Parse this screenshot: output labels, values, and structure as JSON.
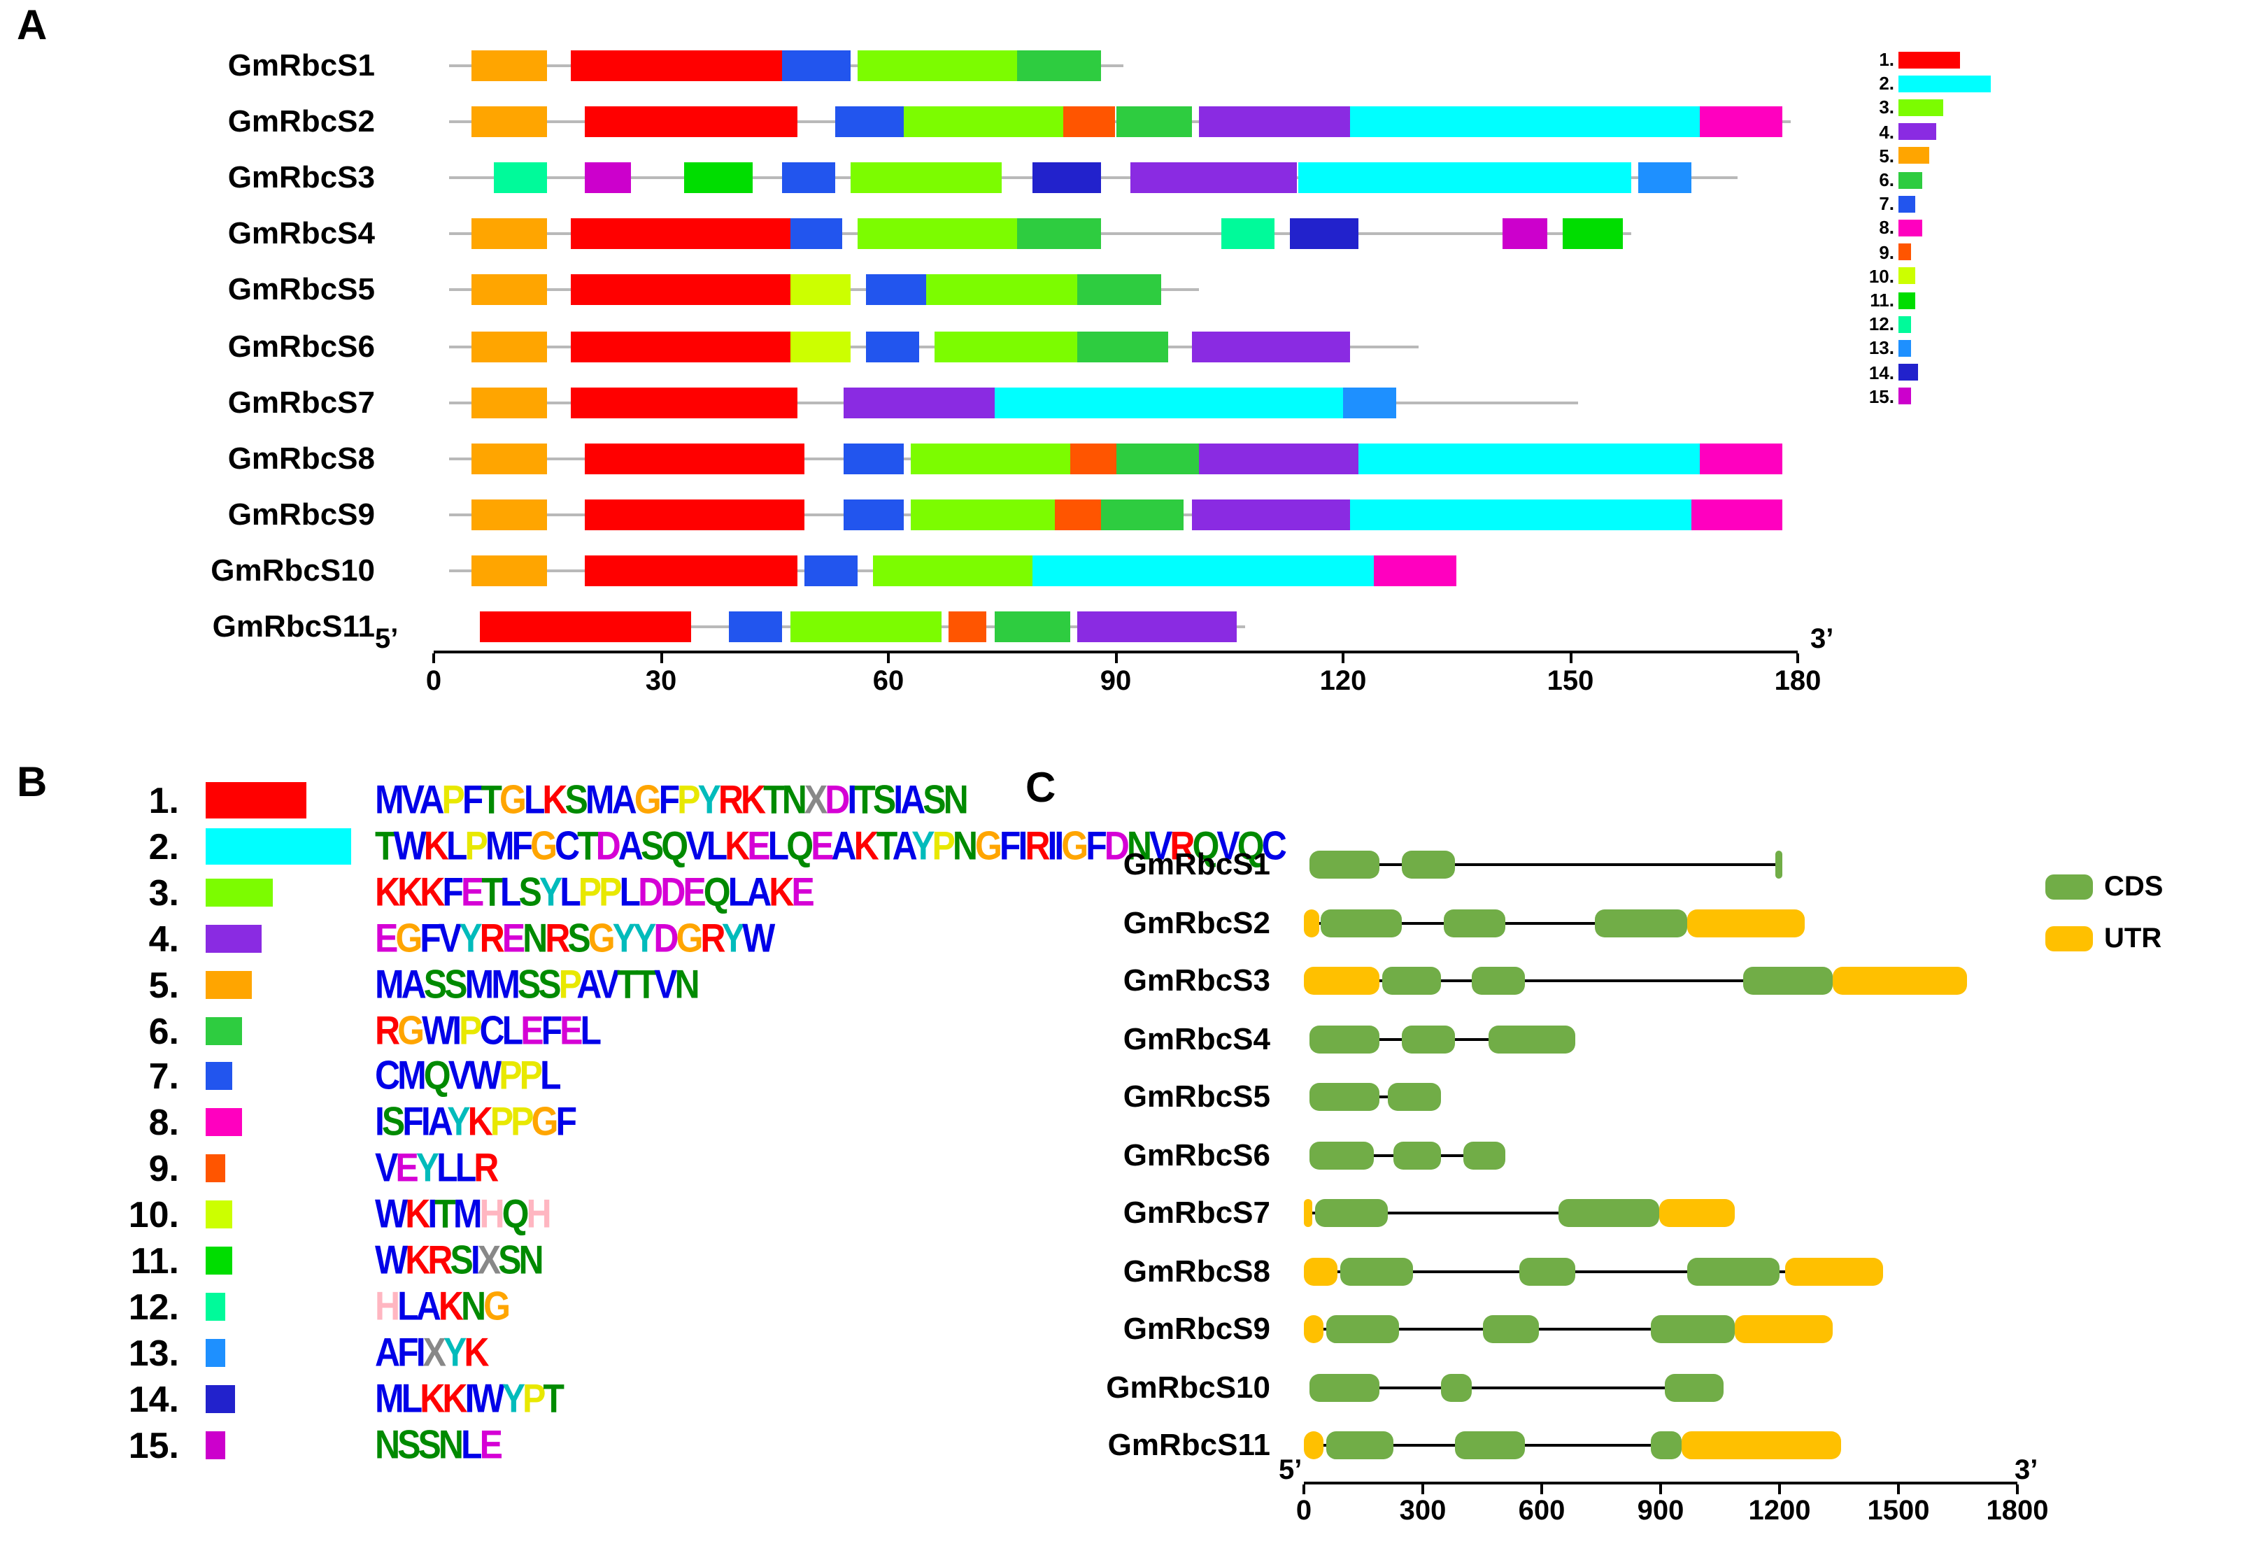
{
  "figure": {
    "panel_a_label": "A",
    "panel_b_label": "B",
    "panel_c_label": "C"
  },
  "motif_colors": {
    "1": "#FF0000",
    "2": "#00FFFF",
    "3": "#7CFC00",
    "4": "#8A2BE2",
    "5": "#FFA500",
    "6": "#2ECC40",
    "7": "#2255EE",
    "8": "#FF00BF",
    "9": "#FF5500",
    "10": "#CCFF00",
    "11": "#00DD00",
    "12": "#00FA9A",
    "13": "#1E90FF",
    "14": "#2222CC",
    "15": "#CC00CC"
  },
  "aa_colors": {
    "A": "#0000E8",
    "C": "#0000E8",
    "F": "#0000E8",
    "I": "#0000E8",
    "L": "#0000E8",
    "V": "#0000E8",
    "W": "#0000E8",
    "M": "#0000E8",
    "N": "#008A00",
    "Q": "#008A00",
    "S": "#008A00",
    "T": "#008A00",
    "D": "#D500D5",
    "E": "#D500D5",
    "K": "#FF0000",
    "R": "#FF0000",
    "H": "#FFB6C1",
    "G": "#FFA500",
    "P": "#E8E800",
    "Y": "#00BBBB",
    "X": "#888888"
  },
  "panel_a": {
    "axis": {
      "min": 0,
      "max": 180,
      "ticks": [
        "0",
        "30",
        "60",
        "90",
        "120",
        "150",
        "180"
      ],
      "five_prime": "5’",
      "three_prime": "3’"
    },
    "legend": [
      {
        "num": "1.",
        "motif": 1,
        "w": 44
      },
      {
        "num": "2.",
        "motif": 2,
        "w": 66
      },
      {
        "num": "3.",
        "motif": 3,
        "w": 32
      },
      {
        "num": "4.",
        "motif": 4,
        "w": 27
      },
      {
        "num": "5.",
        "motif": 5,
        "w": 22
      },
      {
        "num": "6.",
        "motif": 6,
        "w": 17
      },
      {
        "num": "7.",
        "motif": 7,
        "w": 12
      },
      {
        "num": "8.",
        "motif": 8,
        "w": 17
      },
      {
        "num": "9.",
        "motif": 9,
        "w": 9
      },
      {
        "num": "10.",
        "motif": 10,
        "w": 12
      },
      {
        "num": "11.",
        "motif": 11,
        "w": 12
      },
      {
        "num": "12.",
        "motif": 12,
        "w": 9
      },
      {
        "num": "13.",
        "motif": 13,
        "w": 9
      },
      {
        "num": "14.",
        "motif": 14,
        "w": 14
      },
      {
        "num": "15.",
        "motif": 15,
        "w": 9
      }
    ],
    "genes": [
      {
        "name": "GmRbcS1",
        "span": [
          2,
          91
        ],
        "motifs": [
          [
            5,
            5,
            15
          ],
          [
            1,
            18,
            46
          ],
          [
            7,
            46,
            55
          ],
          [
            3,
            56,
            77
          ],
          [
            6,
            77,
            88
          ]
        ]
      },
      {
        "name": "GmRbcS2",
        "span": [
          2,
          179
        ],
        "motifs": [
          [
            5,
            5,
            15
          ],
          [
            1,
            20,
            48
          ],
          [
            7,
            53,
            62
          ],
          [
            3,
            62,
            83
          ],
          [
            9,
            83,
            90
          ],
          [
            6,
            90,
            100
          ],
          [
            4,
            101,
            121
          ],
          [
            2,
            121,
            167
          ],
          [
            8,
            167,
            178
          ]
        ]
      },
      {
        "name": "GmRbcS3",
        "span": [
          2,
          172
        ],
        "motifs": [
          [
            12,
            8,
            15
          ],
          [
            15,
            20,
            26
          ],
          [
            11,
            33,
            42
          ],
          [
            7,
            46,
            53
          ],
          [
            3,
            55,
            75
          ],
          [
            14,
            79,
            88
          ],
          [
            4,
            92,
            114
          ],
          [
            2,
            114,
            158
          ],
          [
            13,
            159,
            166
          ]
        ]
      },
      {
        "name": "GmRbcS4",
        "span": [
          2,
          158
        ],
        "motifs": [
          [
            5,
            5,
            15
          ],
          [
            1,
            18,
            47
          ],
          [
            7,
            47,
            54
          ],
          [
            3,
            56,
            77
          ],
          [
            6,
            77,
            88
          ],
          [
            12,
            104,
            111
          ],
          [
            14,
            113,
            122
          ],
          [
            15,
            141,
            147
          ],
          [
            11,
            149,
            157
          ]
        ]
      },
      {
        "name": "GmRbcS5",
        "span": [
          2,
          101
        ],
        "motifs": [
          [
            5,
            5,
            15
          ],
          [
            1,
            18,
            47
          ],
          [
            10,
            47,
            55
          ],
          [
            7,
            57,
            65
          ],
          [
            3,
            65,
            85
          ],
          [
            6,
            85,
            96
          ]
        ]
      },
      {
        "name": "GmRbcS6",
        "span": [
          2,
          130
        ],
        "motifs": [
          [
            5,
            5,
            15
          ],
          [
            1,
            18,
            47
          ],
          [
            10,
            47,
            55
          ],
          [
            7,
            57,
            64
          ],
          [
            3,
            66,
            85
          ],
          [
            6,
            85,
            97
          ],
          [
            4,
            100,
            121
          ]
        ]
      },
      {
        "name": "GmRbcS7",
        "span": [
          2,
          151
        ],
        "motifs": [
          [
            5,
            5,
            15
          ],
          [
            1,
            18,
            48
          ],
          [
            4,
            54,
            74
          ],
          [
            2,
            74,
            120
          ],
          [
            13,
            120,
            127
          ]
        ]
      },
      {
        "name": "GmRbcS8",
        "span": [
          2,
          178
        ],
        "motifs": [
          [
            5,
            5,
            15
          ],
          [
            1,
            20,
            49
          ],
          [
            7,
            54,
            62
          ],
          [
            3,
            63,
            84
          ],
          [
            9,
            84,
            90
          ],
          [
            6,
            90,
            101
          ],
          [
            4,
            101,
            122
          ],
          [
            2,
            122,
            167
          ],
          [
            8,
            167,
            178
          ]
        ]
      },
      {
        "name": "GmRbcS9",
        "span": [
          2,
          178
        ],
        "motifs": [
          [
            5,
            5,
            15
          ],
          [
            1,
            20,
            49
          ],
          [
            7,
            54,
            62
          ],
          [
            3,
            63,
            82
          ],
          [
            9,
            82,
            88
          ],
          [
            6,
            88,
            99
          ],
          [
            4,
            100,
            121
          ],
          [
            2,
            121,
            166
          ],
          [
            8,
            166,
            178
          ]
        ]
      },
      {
        "name": "GmRbcS10",
        "span": [
          2,
          135
        ],
        "motifs": [
          [
            5,
            5,
            15
          ],
          [
            1,
            20,
            48
          ],
          [
            7,
            49,
            56
          ],
          [
            3,
            58,
            79
          ],
          [
            2,
            79,
            124
          ],
          [
            8,
            124,
            135
          ]
        ]
      },
      {
        "name": "GmRbcS11",
        "span": [
          6,
          107
        ],
        "motifs": [
          [
            1,
            6,
            34
          ],
          [
            7,
            39,
            46
          ],
          [
            3,
            47,
            67
          ],
          [
            9,
            68,
            73
          ],
          [
            6,
            74,
            84
          ],
          [
            4,
            85,
            106
          ]
        ]
      }
    ]
  },
  "panel_b": {
    "items": [
      {
        "num": "1.",
        "motif": 1,
        "w": 72,
        "h": 26,
        "logo": "MVAPFTGLKSMAGFPYRKTNXDITSIASN"
      },
      {
        "num": "2.",
        "motif": 2,
        "w": 104,
        "h": 26,
        "logo": "TWKLPMFGCTDASQVLKELQEAKTAYPNGFIRIIGFDNVRQVQC"
      },
      {
        "num": "3.",
        "motif": 3,
        "w": 48,
        "h": 20,
        "logo": "KKKFETLSYLPPLDDEQLAKE"
      },
      {
        "num": "4.",
        "motif": 4,
        "w": 40,
        "h": 20,
        "logo": "EGFVYRENRSGYYDGRYW"
      },
      {
        "num": "5.",
        "motif": 5,
        "w": 33,
        "h": 20,
        "logo": "MASSMMSSPAVTTVN"
      },
      {
        "num": "6.",
        "motif": 6,
        "w": 26,
        "h": 20,
        "logo": "RGWIPCLEFEL"
      },
      {
        "num": "7.",
        "motif": 7,
        "w": 19,
        "h": 20,
        "logo": "CMQVWPPL"
      },
      {
        "num": "8.",
        "motif": 8,
        "w": 26,
        "h": 20,
        "logo": "ISFIAYKPPGF"
      },
      {
        "num": "9.",
        "motif": 9,
        "w": 14,
        "h": 20,
        "logo": "VEYLLR"
      },
      {
        "num": "10.",
        "motif": 10,
        "w": 19,
        "h": 20,
        "logo": "WKITMHQH"
      },
      {
        "num": "11.",
        "motif": 11,
        "w": 19,
        "h": 20,
        "logo": "WKRSIXSN"
      },
      {
        "num": "12.",
        "motif": 12,
        "w": 14,
        "h": 20,
        "logo": "HLAKNG"
      },
      {
        "num": "13.",
        "motif": 13,
        "w": 14,
        "h": 20,
        "logo": "AFIXYK"
      },
      {
        "num": "14.",
        "motif": 14,
        "w": 21,
        "h": 20,
        "logo": "MLKKIWYPT"
      },
      {
        "num": "15.",
        "motif": 15,
        "w": 14,
        "h": 20,
        "logo": "NSSNLE"
      }
    ]
  },
  "panel_c": {
    "colors": {
      "cds": "#71AD47",
      "utr": "#FFC000"
    },
    "legend": [
      {
        "key": "cds",
        "label": "CDS"
      },
      {
        "key": "utr",
        "label": "UTR"
      }
    ],
    "axis": {
      "min": 0,
      "max": 1800,
      "ticks": [
        "0",
        "300",
        "600",
        "900",
        "1200",
        "1500",
        "1800"
      ],
      "five_prime": "5’",
      "three_prime": "3’"
    },
    "genes": [
      {
        "name": "GmRbcS1",
        "span": [
          15,
          1207
        ],
        "features": [
          [
            "CDS",
            15,
            190
          ],
          [
            "CDS",
            247,
            381
          ],
          [
            "CDS",
            1190,
            1207
          ]
        ]
      },
      {
        "name": "GmRbcS2",
        "span": [
          0,
          1264
        ],
        "features": [
          [
            "UTR",
            0,
            40
          ],
          [
            "CDS",
            42,
            247
          ],
          [
            "CDS",
            353,
            508
          ],
          [
            "CDS",
            734,
            967
          ],
          [
            "UTR",
            967,
            1264
          ]
        ]
      },
      {
        "name": "GmRbcS3",
        "span": [
          0,
          1673
        ],
        "features": [
          [
            "UTR",
            0,
            190
          ],
          [
            "CDS",
            198,
            346
          ],
          [
            "CDS",
            424,
            558
          ],
          [
            "CDS",
            1108,
            1334
          ],
          [
            "UTR",
            1334,
            1673
          ]
        ]
      },
      {
        "name": "GmRbcS4",
        "span": [
          15,
          685
        ],
        "features": [
          [
            "CDS",
            15,
            190
          ],
          [
            "CDS",
            247,
            381
          ],
          [
            "CDS",
            466,
            685
          ]
        ]
      },
      {
        "name": "GmRbcS5",
        "span": [
          15,
          346
        ],
        "features": [
          [
            "CDS",
            15,
            190
          ],
          [
            "CDS",
            212,
            346
          ]
        ]
      },
      {
        "name": "GmRbcS6",
        "span": [
          15,
          508
        ],
        "features": [
          [
            "CDS",
            15,
            176
          ],
          [
            "CDS",
            226,
            346
          ],
          [
            "CDS",
            402,
            508
          ]
        ]
      },
      {
        "name": "GmRbcS7",
        "span": [
          0,
          1087
        ],
        "features": [
          [
            "UTR",
            0,
            21
          ],
          [
            "CDS",
            28,
            212
          ],
          [
            "CDS",
            642,
            897
          ],
          [
            "UTR",
            897,
            1087
          ]
        ]
      },
      {
        "name": "GmRbcS8",
        "span": [
          0,
          1460
        ],
        "features": [
          [
            "UTR",
            0,
            85
          ],
          [
            "CDS",
            92,
            275
          ],
          [
            "CDS",
            544,
            685
          ],
          [
            "CDS",
            967,
            1200
          ],
          [
            "UTR",
            1214,
            1460
          ]
        ]
      },
      {
        "name": "GmRbcS9",
        "span": [
          0,
          1334
        ],
        "features": [
          [
            "UTR",
            0,
            49
          ],
          [
            "CDS",
            56,
            240
          ],
          [
            "CDS",
            452,
            593
          ],
          [
            "CDS",
            875,
            1087
          ],
          [
            "UTR",
            1087,
            1334
          ]
        ]
      },
      {
        "name": "GmRbcS10",
        "span": [
          15,
          1059
        ],
        "features": [
          [
            "CDS",
            15,
            190
          ],
          [
            "CDS",
            346,
            424
          ],
          [
            "CDS",
            910,
            1059
          ]
        ]
      },
      {
        "name": "GmRbcS11",
        "span": [
          0,
          1355
        ],
        "features": [
          [
            "UTR",
            0,
            49
          ],
          [
            "CDS",
            56,
            226
          ],
          [
            "CDS",
            381,
            558
          ],
          [
            "CDS",
            875,
            953
          ],
          [
            "UTR",
            953,
            1355
          ]
        ]
      }
    ]
  }
}
